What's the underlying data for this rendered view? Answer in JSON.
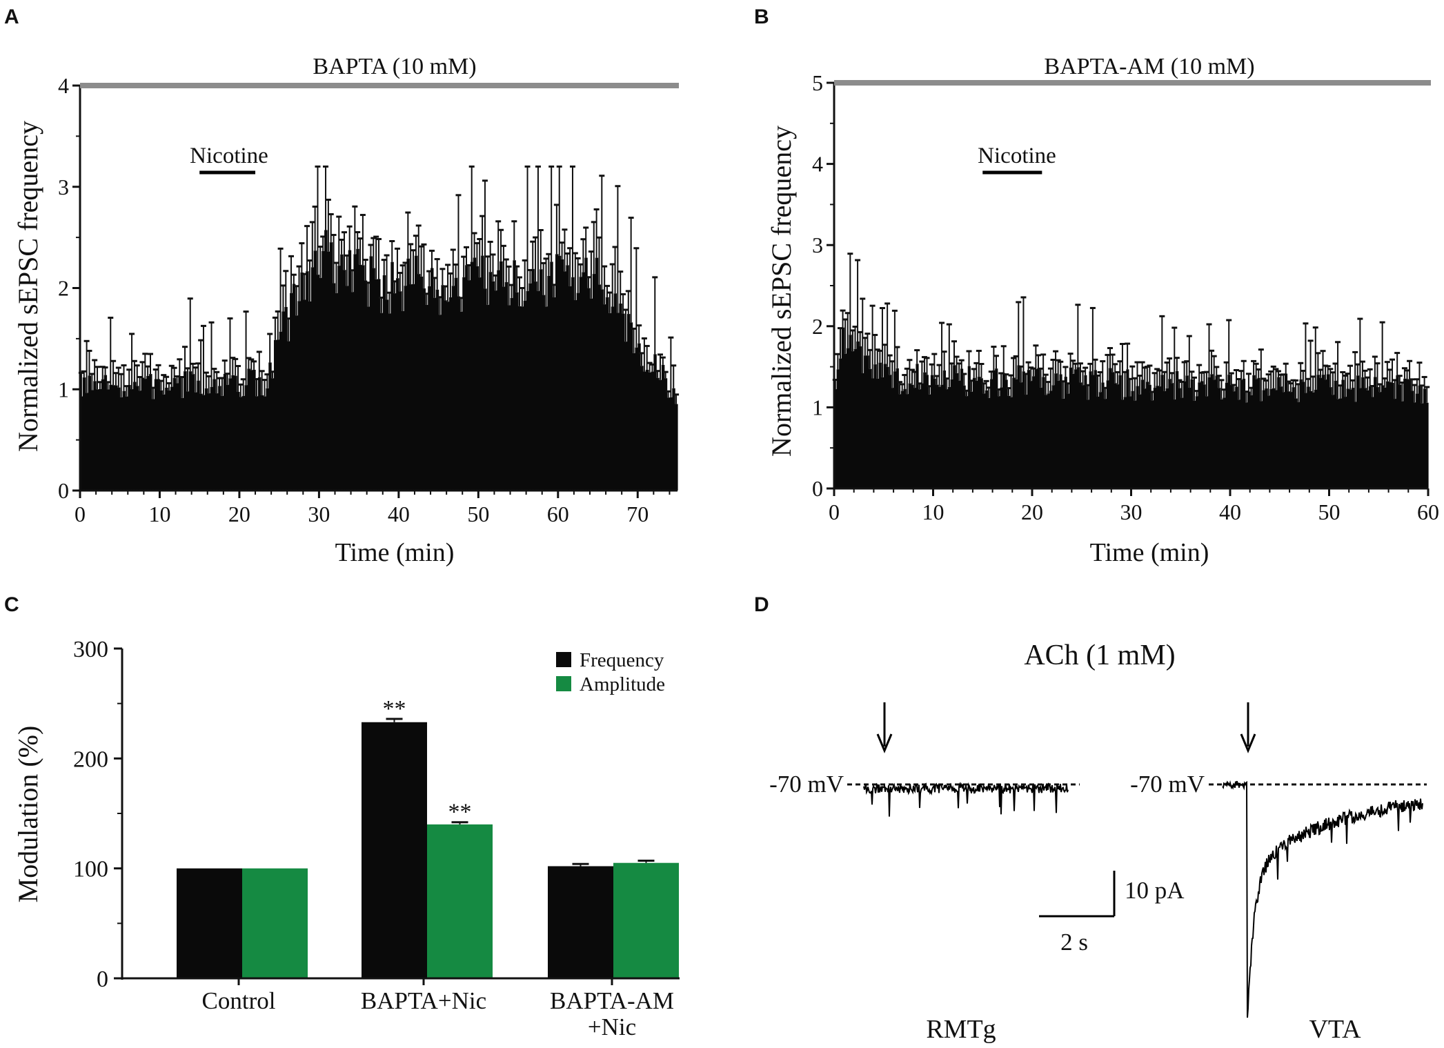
{
  "colors": {
    "frequency": "#0a0a0a",
    "amplitude": "#158a42",
    "condition_bar": "#8c8c8c",
    "axis": "#111111"
  },
  "chart_data": [
    {
      "panel": "A",
      "type": "bar",
      "title": "BAPTA (10 mM)",
      "xlabel": "Time (min)",
      "ylabel": "Normalized sEPSC frequency",
      "xlim": [
        0,
        75
      ],
      "ylim": [
        0,
        4
      ],
      "xticks": [
        0,
        10,
        20,
        30,
        40,
        50,
        60,
        70
      ],
      "yticks": [
        0,
        1,
        2,
        3,
        4
      ],
      "bin_minutes": 0.333,
      "condition_bar": {
        "label": "BAPTA (10 mM)",
        "x": [
          0,
          75
        ],
        "y": 4
      },
      "drug_bar": {
        "label": "Nicotine",
        "x": [
          15,
          22
        ]
      },
      "profile": [
        [
          0,
          1.0
        ],
        [
          23.5,
          1.07
        ],
        [
          25.5,
          1.6
        ],
        [
          28,
          2.0
        ],
        [
          31,
          2.3
        ],
        [
          34,
          2.15
        ],
        [
          38,
          2.0
        ],
        [
          42,
          2.05
        ],
        [
          46,
          1.9
        ],
        [
          50,
          2.05
        ],
        [
          54,
          2.0
        ],
        [
          58,
          2.05
        ],
        [
          62,
          2.1
        ],
        [
          65.5,
          2.05
        ],
        [
          67,
          1.9
        ],
        [
          69,
          1.5
        ],
        [
          73,
          1.15
        ],
        [
          75,
          0.8
        ]
      ],
      "noise": 0.3,
      "seed": 7
    },
    {
      "panel": "B",
      "type": "bar",
      "title": "BAPTA-AM (10 mM)",
      "xlabel": "Time (min)",
      "ylabel": "Normalized sEPSC frequency",
      "xlim": [
        0,
        60
      ],
      "ylim": [
        0,
        5
      ],
      "xticks": [
        0,
        10,
        20,
        30,
        40,
        50,
        60
      ],
      "yticks": [
        0,
        1,
        2,
        3,
        4,
        5
      ],
      "bin_minutes": 0.25,
      "condition_bar": {
        "label": "BAPTA-AM (10 mM)",
        "x": [
          0,
          60
        ],
        "y": 5
      },
      "drug_bar": {
        "label": "Nicotine",
        "x": [
          15,
          21
        ]
      },
      "profile": [
        [
          0,
          1.25
        ],
        [
          1,
          1.9
        ],
        [
          3,
          1.6
        ],
        [
          6,
          1.35
        ],
        [
          60,
          1.2
        ]
      ],
      "noise": 0.35,
      "seed": 21
    },
    {
      "panel": "C",
      "type": "bar",
      "title": "",
      "xlabel": "",
      "ylabel": "Modulation (%)",
      "ylim": [
        0,
        300
      ],
      "yticks": [
        0,
        100,
        200,
        300
      ],
      "groups": [
        {
          "lines": [
            "Control"
          ],
          "frequency": 100,
          "frequency_err": 0,
          "amplitude": 100,
          "amplitude_err": 0,
          "frequency_mark": "",
          "amplitude_mark": ""
        },
        {
          "lines": [
            "BAPTA+Nic"
          ],
          "frequency": 233,
          "frequency_err": 3,
          "amplitude": 140,
          "amplitude_err": 2,
          "frequency_mark": "**",
          "amplitude_mark": "**"
        },
        {
          "lines": [
            "BAPTA-AM",
            "+Nic"
          ],
          "frequency": 102,
          "frequency_err": 2,
          "amplitude": 105,
          "amplitude_err": 2,
          "frequency_mark": "",
          "amplitude_mark": ""
        }
      ],
      "legend": [
        {
          "label": "Frequency",
          "color": "#0a0a0a"
        },
        {
          "label": "Amplitude",
          "color": "#158a42"
        }
      ],
      "legend_position": "top-right"
    }
  ],
  "traces": {
    "panel": "D",
    "title": "ACh (1 mM)",
    "holding_label": "-70 mV",
    "scale_current": "10 pA",
    "scale_time": "2 s",
    "left_label": "RMTg",
    "right_label": "VTA"
  }
}
